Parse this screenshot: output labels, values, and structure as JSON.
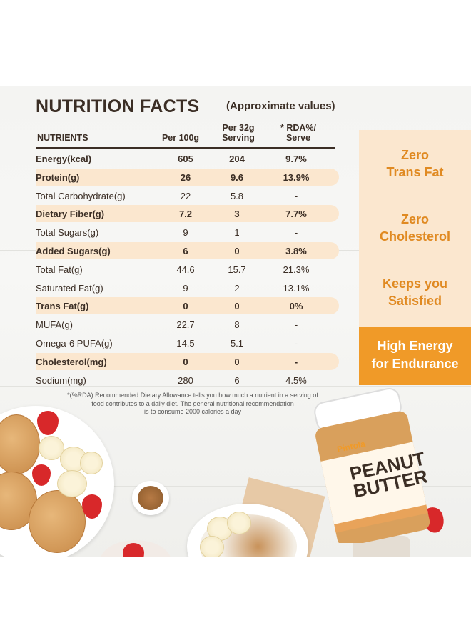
{
  "title": "NUTRITION FACTS",
  "approx": "(Approximate values)",
  "headers": {
    "nutrients": "NUTRIENTS",
    "per100": "Per 100g",
    "per32_l1": "Per 32g",
    "per32_l2": "Serving",
    "rda_l1": "* RDA%/",
    "rda_l2": "Serve"
  },
  "rows": [
    {
      "name": "Energy(kcal)",
      "per100": "605",
      "per32": "204",
      "rda": "9.7%",
      "bold": true,
      "highlight": false
    },
    {
      "name": "Protein(g)",
      "per100": "26",
      "per32": "9.6",
      "rda": "13.9%",
      "bold": true,
      "highlight": true
    },
    {
      "name": "Total Carbohydrate(g)",
      "per100": "22",
      "per32": "5.8",
      "rda": "-",
      "bold": false,
      "highlight": false
    },
    {
      "name": "Dietary Fiber(g)",
      "per100": "7.2",
      "per32": "3",
      "rda": "7.7%",
      "bold": true,
      "highlight": true
    },
    {
      "name": "Total Sugars(g)",
      "per100": "9",
      "per32": "1",
      "rda": "-",
      "bold": false,
      "highlight": false
    },
    {
      "name": "Added Sugars(g)",
      "per100": "6",
      "per32": "0",
      "rda": "3.8%",
      "bold": true,
      "highlight": true
    },
    {
      "name": "Total Fat(g)",
      "per100": "44.6",
      "per32": "15.7",
      "rda": "21.3%",
      "bold": false,
      "highlight": false
    },
    {
      "name": "Saturated Fat(g)",
      "per100": "9",
      "per32": "2",
      "rda": "13.1%",
      "bold": false,
      "highlight": false
    },
    {
      "name": "Trans Fat(g)",
      "per100": "0",
      "per32": "0",
      "rda": "0%",
      "bold": true,
      "highlight": true
    },
    {
      "name": "MUFA(g)",
      "per100": "22.7",
      "per32": "8",
      "rda": "-",
      "bold": false,
      "highlight": false
    },
    {
      "name": "Omega-6 PUFA(g)",
      "per100": "14.5",
      "per32": "5.1",
      "rda": "-",
      "bold": false,
      "highlight": false
    },
    {
      "name": "Cholesterol(mg)",
      "per100": "0",
      "per32": "0",
      "rda": "-",
      "bold": true,
      "highlight": true
    },
    {
      "name": "Sodium(mg)",
      "per100": "280",
      "per32": "6",
      "rda": "4.5%",
      "bold": false,
      "highlight": false
    }
  ],
  "features": {
    "f1_l1": "Zero",
    "f1_l2": "Trans Fat",
    "f2_l1": "Zero",
    "f2_l2": "Cholesterol",
    "f3_l1": "Keeps you",
    "f3_l2": "Satisfied",
    "f4_l1": "High Energy",
    "f4_l2": "for Endurance"
  },
  "footnote": {
    "l1": "*(%RDA) Recommended Dietary Allowance tells you how much a nutrient in a serving of",
    "l2": "food contributes to a daily diet. The general nutritional recommendation",
    "l3": "is to consume 2000 calories a day"
  },
  "jar": {
    "brand": "Pintola",
    "product_l1": "PEANUT",
    "product_l2": "BUTTER"
  },
  "colors": {
    "accent": "#f09a28",
    "highlight": "#fbe7cf",
    "text": "#3b2e25"
  }
}
